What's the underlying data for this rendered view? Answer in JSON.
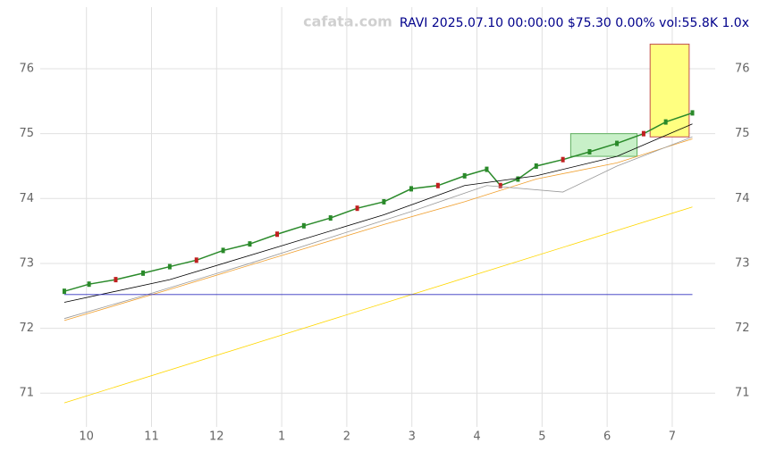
{
  "chart_data": {
    "type": "line",
    "title": "RAVI 2025.07.10 00:00:00 $75.30 0.00% vol:55.8K 1.0x",
    "watermark": "cafata.com",
    "xlim": [
      -0.71,
      9.66
    ],
    "xticks": [
      {
        "value": 0,
        "label": "10"
      },
      {
        "value": 1,
        "label": "11"
      },
      {
        "value": 2,
        "label": "12"
      },
      {
        "value": 3,
        "label": "1"
      },
      {
        "value": 4,
        "label": "2"
      },
      {
        "value": 5,
        "label": "3"
      },
      {
        "value": 6,
        "label": "4"
      },
      {
        "value": 7,
        "label": "5"
      },
      {
        "value": 8,
        "label": "6"
      },
      {
        "value": 9,
        "label": "7"
      }
    ],
    "ylim": [
      70.48,
      76.95
    ],
    "yticks": [
      71,
      72,
      73,
      74,
      75,
      76
    ],
    "grid": true,
    "series": [
      {
        "name": "RAVI",
        "color": "#2a8a2a",
        "x": [
          -0.34,
          0.04,
          0.45,
          0.87,
          1.28,
          1.69,
          2.1,
          2.51,
          2.93,
          3.34,
          3.75,
          4.16,
          4.57,
          4.99,
          5.4,
          5.81,
          6.15,
          6.36,
          6.63,
          6.91,
          7.32,
          7.73,
          8.15,
          8.56,
          8.9,
          9.31
        ],
        "values": [
          72.57,
          72.68,
          72.75,
          72.85,
          72.95,
          73.05,
          73.2,
          73.3,
          73.45,
          73.58,
          73.7,
          73.85,
          73.95,
          74.15,
          74.2,
          74.35,
          74.45,
          74.2,
          74.3,
          74.5,
          74.6,
          74.72,
          74.85,
          75.0,
          75.18,
          75.32
        ]
      },
      {
        "color": "#000000",
        "x": [
          -0.34,
          1.28,
          2.93,
          4.57,
          5.81,
          6.91,
          8.15,
          9.31
        ],
        "values": [
          72.4,
          72.75,
          73.25,
          73.75,
          74.2,
          74.35,
          74.65,
          75.15
        ]
      },
      {
        "color": "#f0a030",
        "x": [
          -0.34,
          1.28,
          2.93,
          4.57,
          5.81,
          6.91,
          8.15,
          9.31
        ],
        "values": [
          72.12,
          72.6,
          73.1,
          73.6,
          73.95,
          74.3,
          74.55,
          74.92
        ]
      },
      {
        "color": "#999999",
        "x": [
          -0.34,
          0.87,
          2.51,
          3.75,
          4.99,
          6.15,
          7.32,
          8.15,
          9.31
        ],
        "values": [
          72.15,
          72.5,
          73.0,
          73.4,
          73.8,
          74.2,
          74.1,
          74.5,
          74.95
        ]
      },
      {
        "color": "#ffd700",
        "x": [
          -0.34,
          9.31
        ],
        "values": [
          70.85,
          73.87
        ]
      },
      {
        "color": "#3030c0",
        "x": [
          -0.34,
          9.31
        ],
        "values": [
          72.52,
          72.52
        ]
      }
    ],
    "zones": [
      {
        "x": [
          8.66,
          9.26
        ],
        "y": [
          74.95,
          76.38
        ],
        "color": "#ffff80",
        "stroke": "#c05050"
      },
      {
        "x": [
          7.44,
          8.46
        ],
        "y": [
          74.65,
          75.0
        ],
        "color": "#c8f0c8",
        "stroke": "#60b060"
      }
    ]
  }
}
